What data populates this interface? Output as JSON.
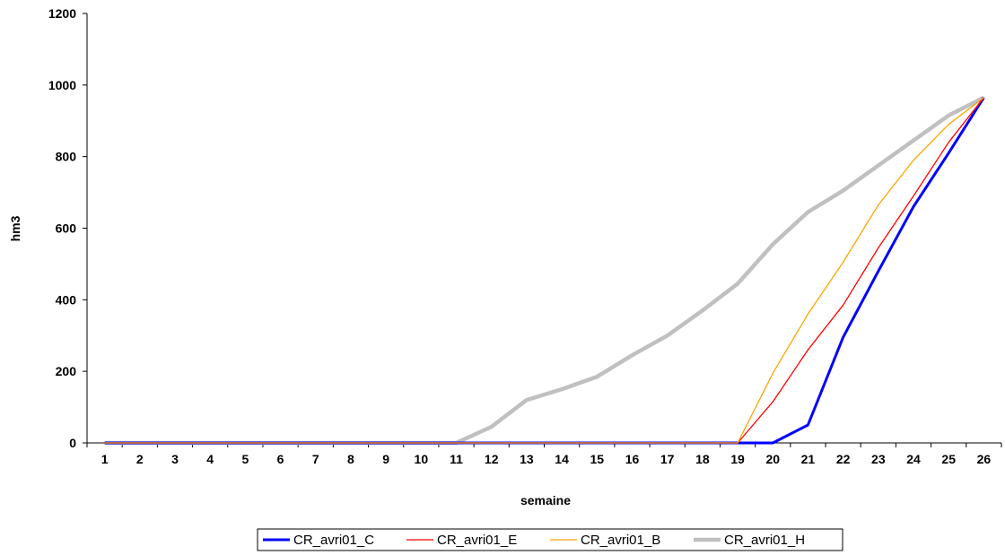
{
  "chart_data": {
    "type": "line",
    "title": "",
    "xlabel": "semaine",
    "ylabel": "hm3",
    "x": [
      1,
      2,
      3,
      4,
      5,
      6,
      7,
      8,
      9,
      10,
      11,
      12,
      13,
      14,
      15,
      16,
      17,
      18,
      19,
      20,
      21,
      22,
      23,
      24,
      25,
      26
    ],
    "ylim": [
      0,
      1200
    ],
    "yticks": [
      0,
      200,
      400,
      600,
      800,
      1000,
      1200
    ],
    "grid": false,
    "legend_position": "bottom",
    "series": [
      {
        "name": "CR_avri01_C",
        "color": "#0000FF",
        "values": [
          0,
          0,
          0,
          0,
          0,
          0,
          0,
          0,
          0,
          0,
          0,
          0,
          0,
          0,
          0,
          0,
          0,
          0,
          0,
          0,
          50,
          295,
          480,
          660,
          810,
          965
        ]
      },
      {
        "name": "CR_avri01_E",
        "color": "#FF0000",
        "values": [
          0,
          0,
          0,
          0,
          0,
          0,
          0,
          0,
          0,
          0,
          0,
          0,
          0,
          0,
          0,
          0,
          0,
          0,
          0,
          115,
          260,
          385,
          545,
          690,
          840,
          965
        ]
      },
      {
        "name": "CR_avri01_B",
        "color": "#FFA500",
        "values": [
          0,
          0,
          0,
          0,
          0,
          0,
          0,
          0,
          0,
          0,
          0,
          0,
          0,
          0,
          0,
          0,
          0,
          0,
          0,
          195,
          360,
          505,
          665,
          790,
          890,
          965
        ]
      },
      {
        "name": "CR_avri01_H",
        "color": "#C0C0C0",
        "values": [
          0,
          0,
          0,
          0,
          0,
          0,
          0,
          0,
          0,
          0,
          0,
          45,
          120,
          150,
          185,
          245,
          300,
          370,
          445,
          555,
          645,
          705,
          775,
          845,
          915,
          965
        ]
      }
    ]
  }
}
